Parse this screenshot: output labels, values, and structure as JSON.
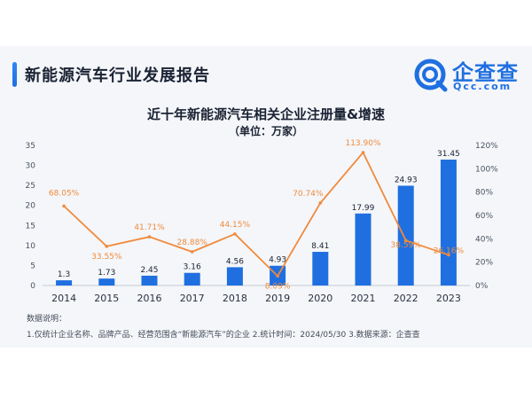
{
  "header": {
    "title": "新能源汽车行业发展报告",
    "logo_text": "企查查",
    "logo_domain": "Qcc.com"
  },
  "colors": {
    "bar": "#1f6fe0",
    "line": "#f08a3c",
    "accent": "#2e86f7"
  },
  "chart_data": {
    "type": "bar",
    "title": "近十年新能源汽车相关企业注册量&增速",
    "subtitle": "（单位：万家）",
    "categories": [
      "2014",
      "2015",
      "2016",
      "2017",
      "2018",
      "2019",
      "2020",
      "2021",
      "2022",
      "2023"
    ],
    "series": [
      {
        "type": "bar",
        "values": [
          1.3,
          1.73,
          2.45,
          3.16,
          4.56,
          4.93,
          8.41,
          17.99,
          24.93,
          31.45
        ],
        "labels": [
          "1.3",
          "1.73",
          "2.45",
          "3.16",
          "4.56",
          "4.93",
          "8.41",
          "17.99",
          "24.93",
          "31.45"
        ]
      },
      {
        "type": "line",
        "values": [
          68.05,
          33.55,
          41.71,
          28.88,
          44.15,
          8.09,
          70.74,
          113.9,
          38.59,
          26.16
        ],
        "labels": [
          "68.05%",
          "33.55%",
          "41.71%",
          "28.88%",
          "44.15%",
          "8.09%",
          "70.74%",
          "113.90%",
          "38.59%",
          "26.16%"
        ]
      }
    ],
    "ylim": [
      0,
      35
    ],
    "yticks": [
      "0",
      "5",
      "10",
      "15",
      "20",
      "25",
      "30",
      "35"
    ],
    "y2lim": [
      0,
      120
    ],
    "y2ticks": [
      "0%",
      "20%",
      "40%",
      "60%",
      "80%",
      "100%",
      "120%"
    ],
    "grid": false
  },
  "notes": {
    "title": "数据说明：",
    "text": "1.仅统计企业名称、品牌产品、经营范围含“新能源汽车”的企业 2.统计时间：2024/05/30 3.数据来源：企查查"
  }
}
